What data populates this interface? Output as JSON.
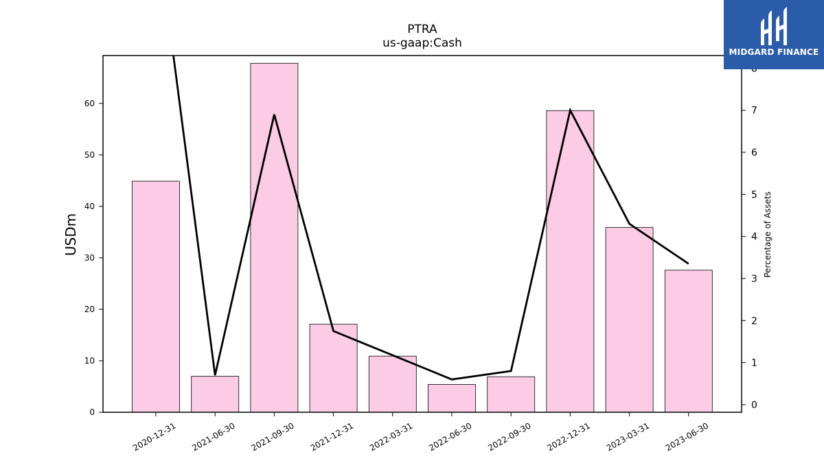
{
  "chart_data": {
    "type": "bar+line",
    "title": "PTRA",
    "subtitle": "us-gaap:Cash",
    "ylabel": "USDm",
    "y2label": "Percentage of Assets",
    "categories": [
      "2020-12-31",
      "2021-06-30",
      "2021-09-30",
      "2021-12-31",
      "2022-03-31",
      "2022-06-30",
      "2022-09-30",
      "2022-12-31",
      "2023-03-31",
      "2023-06-30"
    ],
    "bars": {
      "values": [
        44.9,
        7.0,
        67.8,
        17.1,
        10.9,
        5.4,
        6.9,
        58.6,
        35.9,
        27.6
      ],
      "color": "#fccce5",
      "edge": "#000000"
    },
    "line": {
      "values": [
        11.5,
        0.7,
        6.9,
        1.75,
        null,
        0.6,
        0.8,
        7.0,
        4.3,
        3.35
      ],
      "color": "#000000"
    },
    "ylim": [
      0,
      69.3
    ],
    "y2lim": [
      -0.18,
      8.3
    ],
    "yticks": [
      0,
      10,
      20,
      30,
      40,
      50,
      60
    ],
    "y2ticks": [
      0,
      1,
      2,
      3,
      4,
      5,
      6,
      7,
      8
    ],
    "grid": false,
    "legend": "none"
  },
  "logo": {
    "text": "MIDGARD FINANCE",
    "icon": "midgard-logo-icon"
  }
}
